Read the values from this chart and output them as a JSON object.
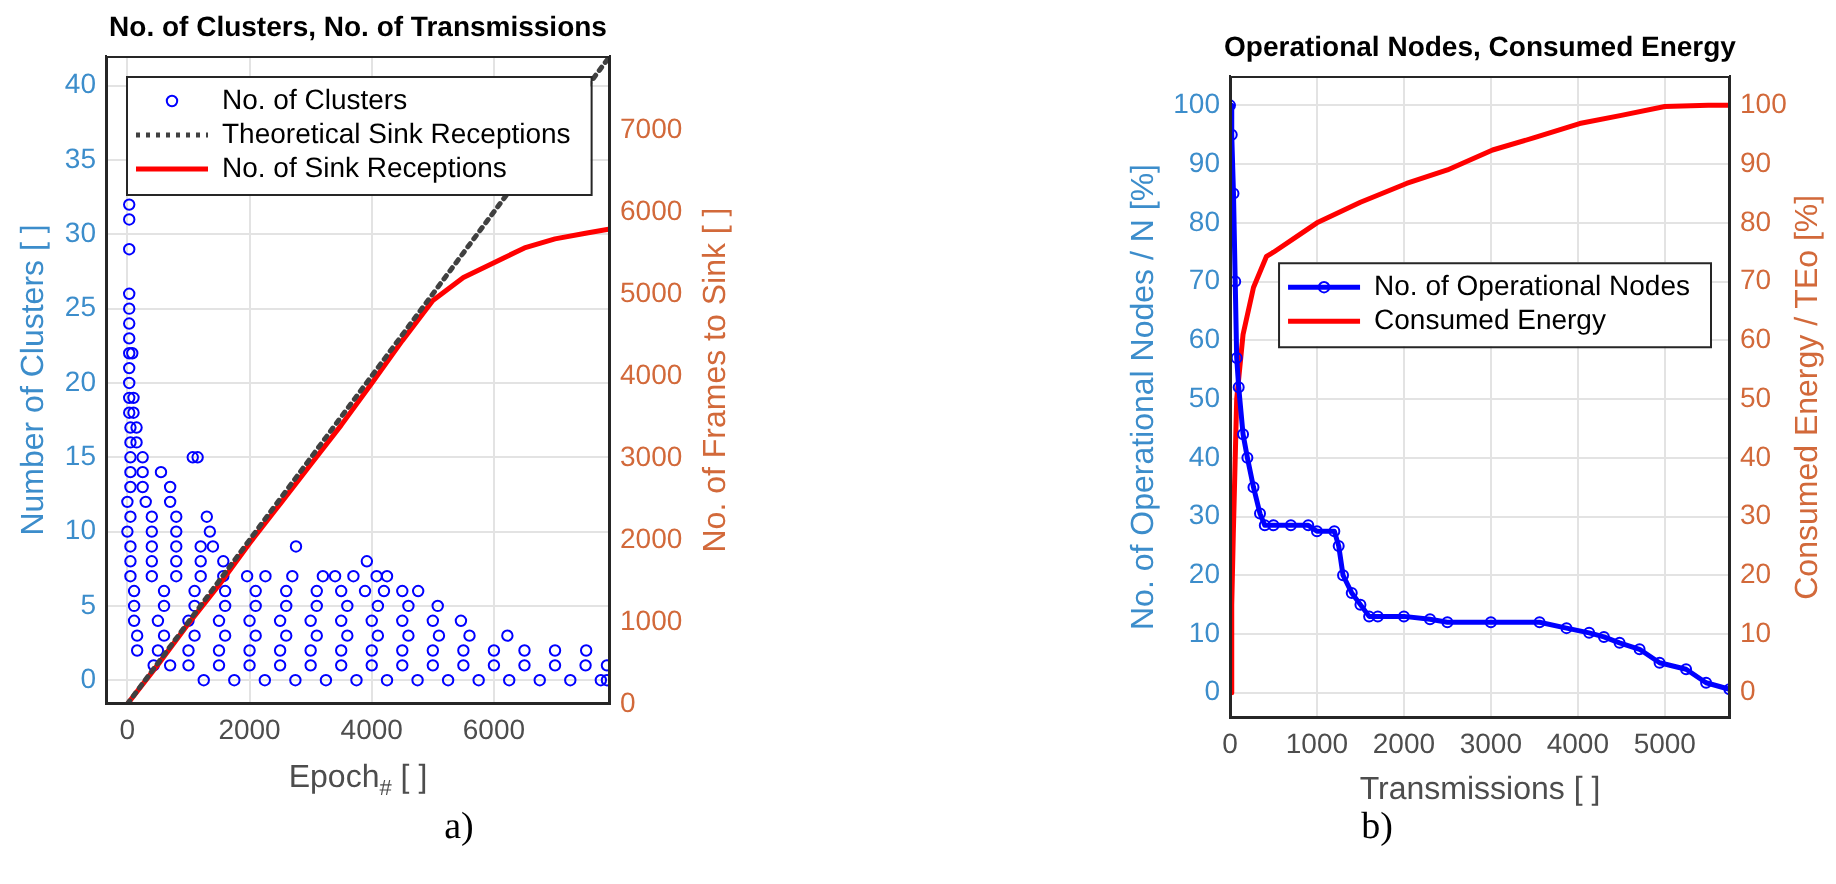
{
  "chart_data": [
    {
      "type": "scatter",
      "title": "No. of Clusters, No. of Transmissions",
      "xlabel": "Epoch$_{#}$ [ ]",
      "ylabel": "Number of Clusters [ ]",
      "y2label": "No. of Frames to Sink [ ]",
      "xlim": [
        -350,
        7900
      ],
      "xticks": [
        0,
        2000,
        4000,
        6000
      ],
      "ylim": [
        -1.6,
        42
      ],
      "yticks": [
        0,
        5,
        10,
        15,
        20,
        25,
        30,
        35,
        40
      ],
      "y2lim": [
        0,
        7900
      ],
      "y2ticks": [
        0,
        1000,
        2000,
        3000,
        4000,
        5000,
        6000,
        7000
      ],
      "grid": true,
      "legend": "top left",
      "annotations": [
        "a)"
      ],
      "series": [
        {
          "name": "No. of Clusters",
          "marker": "circle",
          "color": "#0000ff",
          "x": [
            1250,
            1750,
            2250,
            2750,
            3250,
            3750,
            4250,
            4750,
            5250,
            5750,
            6250,
            6750,
            7250,
            7750,
            7850,
            430,
            700,
            1000,
            1500,
            2000,
            2500,
            3000,
            3500,
            4000,
            4500,
            5000,
            5500,
            6000,
            6500,
            7000,
            7500,
            7850,
            160,
            500,
            1000,
            1500,
            2000,
            2500,
            3000,
            3500,
            4000,
            4500,
            5000,
            5500,
            6000,
            6500,
            7000,
            7510,
            160,
            600,
            1100,
            1600,
            2100,
            2600,
            3100,
            3600,
            4100,
            4600,
            5100,
            5600,
            6220,
            110,
            500,
            1000,
            1500,
            2000,
            2500,
            3000,
            3500,
            4000,
            4500,
            5000,
            5460,
            110,
            600,
            1100,
            1600,
            2100,
            2600,
            3100,
            3600,
            4100,
            4600,
            5080,
            110,
            600,
            1100,
            1600,
            2100,
            2600,
            3100,
            3500,
            3890,
            4200,
            4500,
            4760,
            50,
            400,
            800,
            1200,
            1570,
            1960,
            2260,
            2700,
            3200,
            3400,
            3700,
            4080,
            4250,
            50,
            400,
            800,
            1200,
            1570,
            3920,
            50,
            400,
            800,
            1200,
            1400,
            2760,
            0,
            400,
            800,
            1350,
            50,
            400,
            800,
            1300,
            0,
            300,
            700,
            50,
            250,
            700,
            50,
            250,
            550,
            50,
            250,
            1070,
            1150,
            50,
            150,
            50,
            150,
            30,
            100,
            30,
            100,
            30,
            30,
            30,
            80,
            30,
            30,
            30,
            30,
            30,
            30,
            30
          ],
          "values": [
            0,
            0,
            0,
            0,
            0,
            0,
            0,
            0,
            0,
            0,
            0,
            0,
            0,
            0,
            0,
            1,
            1,
            1,
            1,
            1,
            1,
            1,
            1,
            1,
            1,
            1,
            1,
            1,
            1,
            1,
            1,
            1,
            2,
            2,
            2,
            2,
            2,
            2,
            2,
            2,
            2,
            2,
            2,
            2,
            2,
            2,
            2,
            2,
            3,
            3,
            3,
            3,
            3,
            3,
            3,
            3,
            3,
            3,
            3,
            3,
            3,
            4,
            4,
            4,
            4,
            4,
            4,
            4,
            4,
            4,
            4,
            4,
            4,
            5,
            5,
            5,
            5,
            5,
            5,
            5,
            5,
            5,
            5,
            5,
            6,
            6,
            6,
            6,
            6,
            6,
            6,
            6,
            6,
            6,
            6,
            6,
            7,
            7,
            7,
            7,
            7,
            7,
            7,
            7,
            7,
            7,
            7,
            7,
            7,
            8,
            8,
            8,
            8,
            8,
            8,
            9,
            9,
            9,
            9,
            9,
            9,
            10,
            10,
            10,
            10,
            11,
            11,
            11,
            11,
            12,
            12,
            12,
            13,
            13,
            13,
            14,
            14,
            14,
            15,
            15,
            15,
            15,
            16,
            16,
            17,
            17,
            18,
            18,
            19,
            19,
            20,
            21,
            22,
            22,
            23,
            24,
            25,
            26,
            29,
            31,
            32
          ]
        },
        {
          "name": "Theoretical Sink Receptions",
          "type": "line",
          "axis": "y2",
          "marker": "none",
          "line_style": "dotted",
          "color": "#404040",
          "x": [
            0,
            7900
          ],
          "values": [
            0,
            7900
          ]
        },
        {
          "name": "No. of Sink Receptions",
          "type": "line",
          "axis": "y2",
          "marker": "none",
          "line_style": "solid",
          "color": "#ff0000",
          "x": [
            0,
            500,
            1000,
            1500,
            2000,
            2500,
            3000,
            3500,
            4000,
            4500,
            5000,
            5500,
            6000,
            6500,
            7000,
            7500,
            7900
          ],
          "values": [
            0,
            480,
            980,
            1450,
            1960,
            2440,
            2920,
            3400,
            3910,
            4430,
            4920,
            5200,
            5380,
            5560,
            5670,
            5740,
            5790
          ]
        }
      ]
    },
    {
      "type": "line",
      "title": "Operational Nodes, Consumed Energy",
      "xlabel": "Transmissions [ ]",
      "ylabel": "No. of Operational Nodes / N [%]",
      "y2label": "Consumed Energy / TEo [%]",
      "xlim": [
        0,
        5750
      ],
      "xticks": [
        0,
        1000,
        2000,
        3000,
        4000,
        5000
      ],
      "ylim": [
        -4.3,
        105
      ],
      "yticks": [
        0,
        10,
        20,
        30,
        40,
        50,
        60,
        70,
        80,
        90,
        100
      ],
      "y2lim": [
        -4.3,
        105
      ],
      "y2ticks": [
        0,
        10,
        20,
        30,
        40,
        50,
        60,
        70,
        80,
        90,
        100
      ],
      "grid": true,
      "legend": "right",
      "annotations": [
        "b)"
      ],
      "series": [
        {
          "name": "No. of Operational Nodes",
          "marker": "circle",
          "line_style": "solid",
          "color": "#0000ff",
          "x": [
            0,
            20,
            40,
            60,
            77,
            100,
            150,
            200,
            270,
            345,
            400,
            500,
            700,
            900,
            1000,
            1200,
            1250,
            1300,
            1400,
            1500,
            1600,
            1700,
            2000,
            2300,
            2500,
            3000,
            3560,
            3870,
            4130,
            4300,
            4480,
            4710,
            4940,
            5245,
            5475,
            5743
          ],
          "values": [
            100,
            95,
            85,
            70,
            57,
            52,
            44,
            40,
            35,
            30.5,
            28.5,
            28.5,
            28.5,
            28.5,
            27.5,
            27.5,
            25,
            20,
            17,
            15,
            13,
            13,
            13,
            12.5,
            12,
            12,
            12,
            11,
            10.2,
            9.5,
            8.5,
            7.4,
            5.1,
            4,
            1.7,
            0.6
          ]
        },
        {
          "name": "Consumed Energy",
          "axis": "y2",
          "marker": "none",
          "line_style": "solid",
          "color": "#ff0000",
          "x": [
            0,
            20,
            38,
            77,
            150,
            270,
            420,
            500,
            800,
            1000,
            1500,
            2030,
            2500,
            3020,
            3500,
            4020,
            4500,
            5000,
            5500,
            5743
          ],
          "values": [
            0,
            15,
            27,
            50,
            61,
            69,
            74.3,
            75,
            78,
            80,
            83.5,
            86.7,
            89,
            92.4,
            94.5,
            96.9,
            98.3,
            99.8,
            100,
            100
          ]
        }
      ]
    }
  ]
}
